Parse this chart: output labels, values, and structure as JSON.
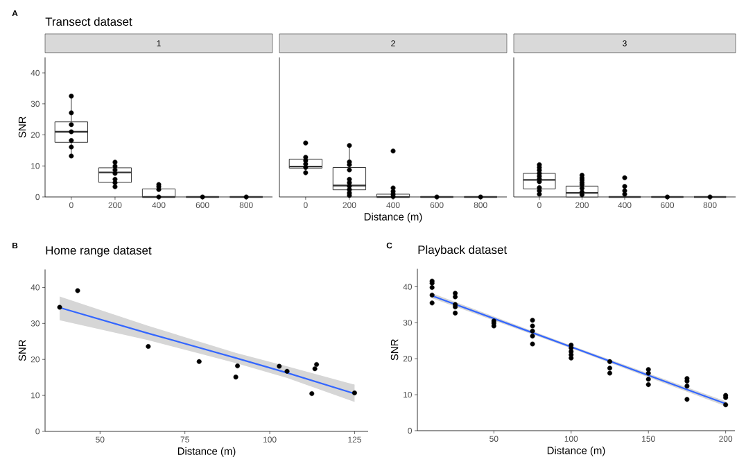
{
  "chart_data": [
    {
      "type": "box",
      "title": "1",
      "annotations": [
        "A",
        "Transect dataset"
      ],
      "ylabel": "SNR",
      "categories": [
        "0",
        "200",
        "400",
        "600",
        "800"
      ],
      "ylim": [
        0,
        45
      ],
      "yticks": [
        0,
        10,
        20,
        30,
        40
      ],
      "series": [
        {
          "color": "#333333",
          "boxes": [
            {
              "low": 13.2,
              "q1": 17.6,
              "median": 21.0,
              "q3": 24.2,
              "high": 32.5
            },
            {
              "low": 3.3,
              "q1": 4.7,
              "median": 7.9,
              "q3": 9.4,
              "high": 11.2
            },
            {
              "low": 0,
              "q1": 0,
              "median": 0,
              "q3": 2.6,
              "high": 4.0
            },
            {
              "low": 0,
              "q1": 0,
              "median": 0,
              "q3": 0,
              "high": 0
            },
            {
              "low": 0,
              "q1": 0,
              "median": 0,
              "q3": 0,
              "high": 0
            }
          ]
        },
        {
          "type": "scatter",
          "color": "#000000",
          "marker": "circle",
          "x": [
            "0",
            "0",
            "0",
            "0",
            "0",
            "0",
            "0",
            "200",
            "200",
            "200",
            "200",
            "200",
            "200",
            "200",
            "400",
            "400",
            "400",
            "400",
            "600",
            "800"
          ],
          "values": [
            32.5,
            27.1,
            23.3,
            21.0,
            18.2,
            16.1,
            13.2,
            11.2,
            9.9,
            8.7,
            7.6,
            5.7,
            4.6,
            3.3,
            4.0,
            3.3,
            2.4,
            0,
            0,
            0
          ]
        }
      ]
    },
    {
      "type": "box",
      "title": "2",
      "xlabel": "Distance (m)",
      "categories": [
        "0",
        "200",
        "400",
        "600",
        "800"
      ],
      "ylim": [
        0,
        45
      ],
      "tick_labels": "x",
      "series": [
        {
          "color": "#333333",
          "boxes": [
            {
              "low": 7.8,
              "q1": 9.3,
              "median": 9.8,
              "q3": 12.2,
              "high": 12.8
            },
            {
              "low": 0.5,
              "q1": 2.3,
              "median": 3.7,
              "q3": 9.5,
              "high": 16.6
            },
            {
              "low": 0,
              "q1": 0,
              "median": 0,
              "q3": 0.9,
              "high": 1.8
            },
            {
              "low": 0,
              "q1": 0,
              "median": 0,
              "q3": 0,
              "high": 0
            },
            {
              "low": 0,
              "q1": 0,
              "median": 0,
              "q3": 0,
              "high": 0
            }
          ]
        },
        {
          "type": "scatter",
          "color": "#000000",
          "marker": "circle",
          "x": [
            "0",
            "0",
            "0",
            "0",
            "0",
            "0",
            "200",
            "200",
            "200",
            "200",
            "200",
            "200",
            "200",
            "200",
            "200",
            "200",
            "400",
            "400",
            "400",
            "400",
            "400",
            "600",
            "800"
          ],
          "values": [
            17.4,
            12.8,
            11.7,
            10.6,
            9.5,
            7.8,
            16.6,
            11.3,
            10.4,
            8.7,
            5.7,
            4.6,
            3.5,
            2.4,
            1.3,
            0.5,
            14.8,
            2.9,
            1.8,
            0.9,
            0.1,
            0,
            0
          ]
        }
      ]
    },
    {
      "type": "box",
      "title": "3",
      "categories": [
        "0",
        "200",
        "400",
        "600",
        "800"
      ],
      "ylim": [
        0,
        45
      ],
      "tick_labels": "x",
      "series": [
        {
          "color": "#333333",
          "boxes": [
            {
              "low": 0.9,
              "q1": 2.6,
              "median": 5.5,
              "q3": 7.6,
              "high": 10.4
            },
            {
              "low": 0,
              "q1": 0,
              "median": 1.3,
              "q3": 3.5,
              "high": 7.0
            },
            {
              "low": 0,
              "q1": 0,
              "median": 0,
              "q3": 0,
              "high": 0
            },
            {
              "low": 0,
              "q1": 0,
              "median": 0,
              "q3": 0,
              "high": 0
            },
            {
              "low": 0,
              "q1": 0,
              "median": 0,
              "q3": 0,
              "high": 0
            }
          ]
        },
        {
          "type": "scatter",
          "color": "#000000",
          "marker": "circle",
          "x": [
            "0",
            "0",
            "0",
            "0",
            "0",
            "0",
            "0",
            "0",
            "0",
            "0",
            "200",
            "200",
            "200",
            "200",
            "200",
            "200",
            "200",
            "200",
            "400",
            "400",
            "400",
            "400",
            "600",
            "800"
          ],
          "values": [
            10.4,
            9.5,
            8.6,
            7.6,
            6.7,
            5.8,
            4.9,
            3.0,
            2.0,
            0.9,
            7.0,
            6.1,
            5.4,
            4.6,
            3.9,
            2.8,
            1.6,
            0.7,
            6.2,
            3.4,
            2.0,
            0.9,
            0,
            0
          ]
        }
      ]
    },
    {
      "type": "scatter",
      "title": "Home range dataset",
      "annotations": [
        "B"
      ],
      "xlabel": "Distance (m)",
      "ylabel": "SNR",
      "xlim": [
        33.8,
        129
      ],
      "xticks": [
        50,
        75,
        100,
        125
      ],
      "ylim": [
        0,
        45
      ],
      "yticks": [
        0,
        10,
        20,
        30,
        40
      ],
      "series": [
        {
          "color": "#000000",
          "marker": "circle",
          "x": [
            38.1,
            43.4,
            64.2,
            79.2,
            90.0,
            90.5,
            102.8,
            105.1,
            112.4,
            113.3,
            113.8,
            125.0
          ],
          "values": [
            34.5,
            39.1,
            23.6,
            19.4,
            15.1,
            18.2,
            18.1,
            16.7,
            10.5,
            17.4,
            18.6,
            10.7
          ]
        },
        {
          "type": "line",
          "color": "#3366ff",
          "x": [
            38.1,
            64,
            90,
            105,
            125
          ],
          "values": [
            34.4,
            27.3,
            20.4,
            16.3,
            10.5
          ],
          "lower": [
            30.9,
            25.4,
            19.0,
            14.9,
            8.2
          ],
          "upper": [
            37.5,
            29.4,
            21.8,
            18.1,
            13.0
          ]
        }
      ]
    },
    {
      "type": "scatter",
      "title": "Playback dataset",
      "annotations": [
        "C"
      ],
      "xlabel": "Distance (m)",
      "ylabel": "SNR",
      "xlim": [
        0.5,
        206
      ],
      "xticks": [
        50,
        100,
        150,
        200
      ],
      "ylim": [
        0,
        45
      ],
      "yticks": [
        0,
        10,
        20,
        30,
        40
      ],
      "series": [
        {
          "color": "#000000",
          "marker": "circle",
          "x": [
            10,
            10,
            10,
            10,
            10,
            25,
            25,
            25,
            25,
            25,
            50,
            50,
            50,
            75,
            75,
            75,
            75,
            75,
            100,
            100,
            100,
            100,
            100,
            125,
            125,
            125,
            150,
            150,
            150,
            150,
            175,
            175,
            175,
            175,
            200,
            200,
            200
          ],
          "values": [
            41.6,
            41.0,
            39.8,
            37.7,
            35.5,
            38.2,
            37.2,
            35.1,
            34.4,
            32.7,
            30.5,
            29.9,
            29.1,
            30.7,
            29.1,
            27.7,
            26.3,
            24.1,
            23.8,
            23.0,
            22.0,
            21.1,
            20.2,
            19.2,
            17.4,
            16.0,
            17.0,
            16.0,
            14.3,
            12.8,
            14.5,
            13.8,
            12.4,
            8.7,
            9.8,
            9.2,
            7.2
          ]
        },
        {
          "type": "line",
          "color": "#3366ff",
          "x": [
            10,
            105,
            200
          ],
          "values": [
            37.5,
            22.5,
            7.5
          ],
          "lower": [
            36.8,
            22.1,
            6.8
          ],
          "upper": [
            38.2,
            22.9,
            8.2
          ]
        }
      ]
    }
  ]
}
